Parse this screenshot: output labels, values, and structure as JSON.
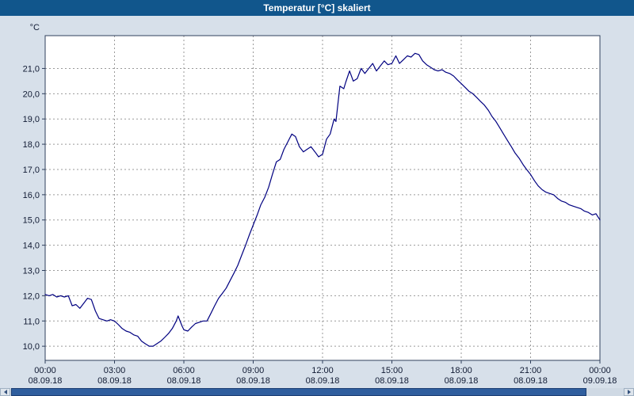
{
  "window": {
    "title": "Temperatur [°C] skaliert"
  },
  "colors": {
    "titlebar": "#11568c",
    "background": "#d7e0ea",
    "plot_background": "#ffffff",
    "plot_border": "#2f3f5c",
    "grid": "#9a9a9a",
    "axis_text": "#101a33",
    "line": "#000080",
    "scrollbar_thumb": "#2f5e9e"
  },
  "chart_data": {
    "type": "line",
    "title": "Temperatur [°C] skaliert",
    "ylabel": "°C",
    "xlabel": "",
    "grid": "dashed",
    "legend": "none",
    "xlim": [
      0,
      24
    ],
    "ylim": [
      9.44,
      22.3
    ],
    "y_ticks": [
      {
        "value": 10,
        "label": "10,0"
      },
      {
        "value": 11,
        "label": "11,0"
      },
      {
        "value": 12,
        "label": "12,0"
      },
      {
        "value": 13,
        "label": "13,0"
      },
      {
        "value": 14,
        "label": "14,0"
      },
      {
        "value": 15,
        "label": "15,0"
      },
      {
        "value": 16,
        "label": "16,0"
      },
      {
        "value": 17,
        "label": "17,0"
      },
      {
        "value": 18,
        "label": "18,0"
      },
      {
        "value": 19,
        "label": "19,0"
      },
      {
        "value": 20,
        "label": "20,0"
      },
      {
        "value": 21,
        "label": "21,0"
      }
    ],
    "x_ticks": [
      {
        "hour": 0,
        "time": "00:00",
        "date": "08.09.18"
      },
      {
        "hour": 3,
        "time": "03:00",
        "date": "08.09.18"
      },
      {
        "hour": 6,
        "time": "06:00",
        "date": "08.09.18"
      },
      {
        "hour": 9,
        "time": "09:00",
        "date": "08.09.18"
      },
      {
        "hour": 12,
        "time": "12:00",
        "date": "08.09.18"
      },
      {
        "hour": 15,
        "time": "15:00",
        "date": "08.09.18"
      },
      {
        "hour": 18,
        "time": "18:00",
        "date": "08.09.18"
      },
      {
        "hour": 21,
        "time": "21:00",
        "date": "08.09.18"
      },
      {
        "hour": 24,
        "time": "00:00",
        "date": "09.09.18"
      }
    ],
    "series": [
      {
        "name": "Temperatur",
        "color": "#000080",
        "x": [
          0,
          0.17,
          0.33,
          0.5,
          0.67,
          0.83,
          1,
          1.17,
          1.33,
          1.5,
          1.67,
          1.83,
          2,
          2.17,
          2.33,
          2.5,
          2.67,
          2.83,
          3,
          3.17,
          3.33,
          3.5,
          3.67,
          3.83,
          4,
          4.17,
          4.33,
          4.5,
          4.67,
          4.83,
          5,
          5.17,
          5.33,
          5.5,
          5.67,
          5.75,
          5.92,
          6,
          6.17,
          6.33,
          6.5,
          6.67,
          6.83,
          7,
          7.17,
          7.33,
          7.5,
          7.67,
          7.83,
          8,
          8.17,
          8.33,
          8.5,
          8.67,
          8.83,
          9,
          9.17,
          9.33,
          9.5,
          9.67,
          9.83,
          10,
          10.17,
          10.33,
          10.5,
          10.67,
          10.83,
          11,
          11.17,
          11.33,
          11.5,
          11.67,
          11.83,
          12,
          12.17,
          12.33,
          12.5,
          12.58,
          12.75,
          12.92,
          13,
          13.17,
          13.33,
          13.5,
          13.67,
          13.83,
          14,
          14.17,
          14.33,
          14.5,
          14.67,
          14.83,
          15,
          15.17,
          15.33,
          15.5,
          15.67,
          15.83,
          16,
          16.17,
          16.33,
          16.5,
          16.67,
          16.83,
          17,
          17.17,
          17.33,
          17.5,
          17.67,
          17.83,
          18,
          18.17,
          18.33,
          18.5,
          18.67,
          18.83,
          19,
          19.17,
          19.33,
          19.5,
          19.67,
          19.83,
          20,
          20.17,
          20.33,
          20.5,
          20.67,
          20.83,
          21,
          21.17,
          21.33,
          21.5,
          21.67,
          21.83,
          22,
          22.17,
          22.33,
          22.5,
          22.67,
          22.83,
          23,
          23.17,
          23.33,
          23.5,
          23.67,
          23.83,
          24
        ],
        "values": [
          12.05,
          12,
          12.05,
          11.95,
          12,
          11.95,
          12,
          11.6,
          11.65,
          11.5,
          11.7,
          11.9,
          11.85,
          11.4,
          11.1,
          11.05,
          11,
          11.05,
          11,
          10.85,
          10.7,
          10.6,
          10.55,
          10.45,
          10.4,
          10.2,
          10.1,
          10,
          10,
          10.1,
          10.2,
          10.35,
          10.5,
          10.7,
          11,
          11.2,
          10.8,
          10.65,
          10.6,
          10.75,
          10.9,
          10.95,
          11,
          11,
          11.3,
          11.6,
          11.9,
          12.1,
          12.3,
          12.6,
          12.9,
          13.2,
          13.6,
          14,
          14.4,
          14.8,
          15.2,
          15.6,
          15.9,
          16.3,
          16.8,
          17.3,
          17.4,
          17.8,
          18.1,
          18.4,
          18.3,
          17.9,
          17.7,
          17.8,
          17.9,
          17.7,
          17.5,
          17.6,
          18.2,
          18.4,
          19,
          18.9,
          20.3,
          20.2,
          20.45,
          20.9,
          20.5,
          20.6,
          21,
          20.8,
          21,
          21.2,
          20.9,
          21.1,
          21.3,
          21.15,
          21.2,
          21.5,
          21.2,
          21.35,
          21.5,
          21.45,
          21.6,
          21.55,
          21.3,
          21.15,
          21.05,
          20.95,
          20.9,
          20.95,
          20.85,
          20.8,
          20.7,
          20.55,
          20.4,
          20.25,
          20.1,
          20,
          19.85,
          19.7,
          19.55,
          19.35,
          19.1,
          18.9,
          18.65,
          18.4,
          18.15,
          17.9,
          17.65,
          17.45,
          17.2,
          17,
          16.8,
          16.55,
          16.35,
          16.2,
          16.1,
          16.05,
          16,
          15.85,
          15.75,
          15.7,
          15.6,
          15.55,
          15.5,
          15.45,
          15.35,
          15.3,
          15.2,
          15.25,
          15
        ]
      }
    ]
  }
}
